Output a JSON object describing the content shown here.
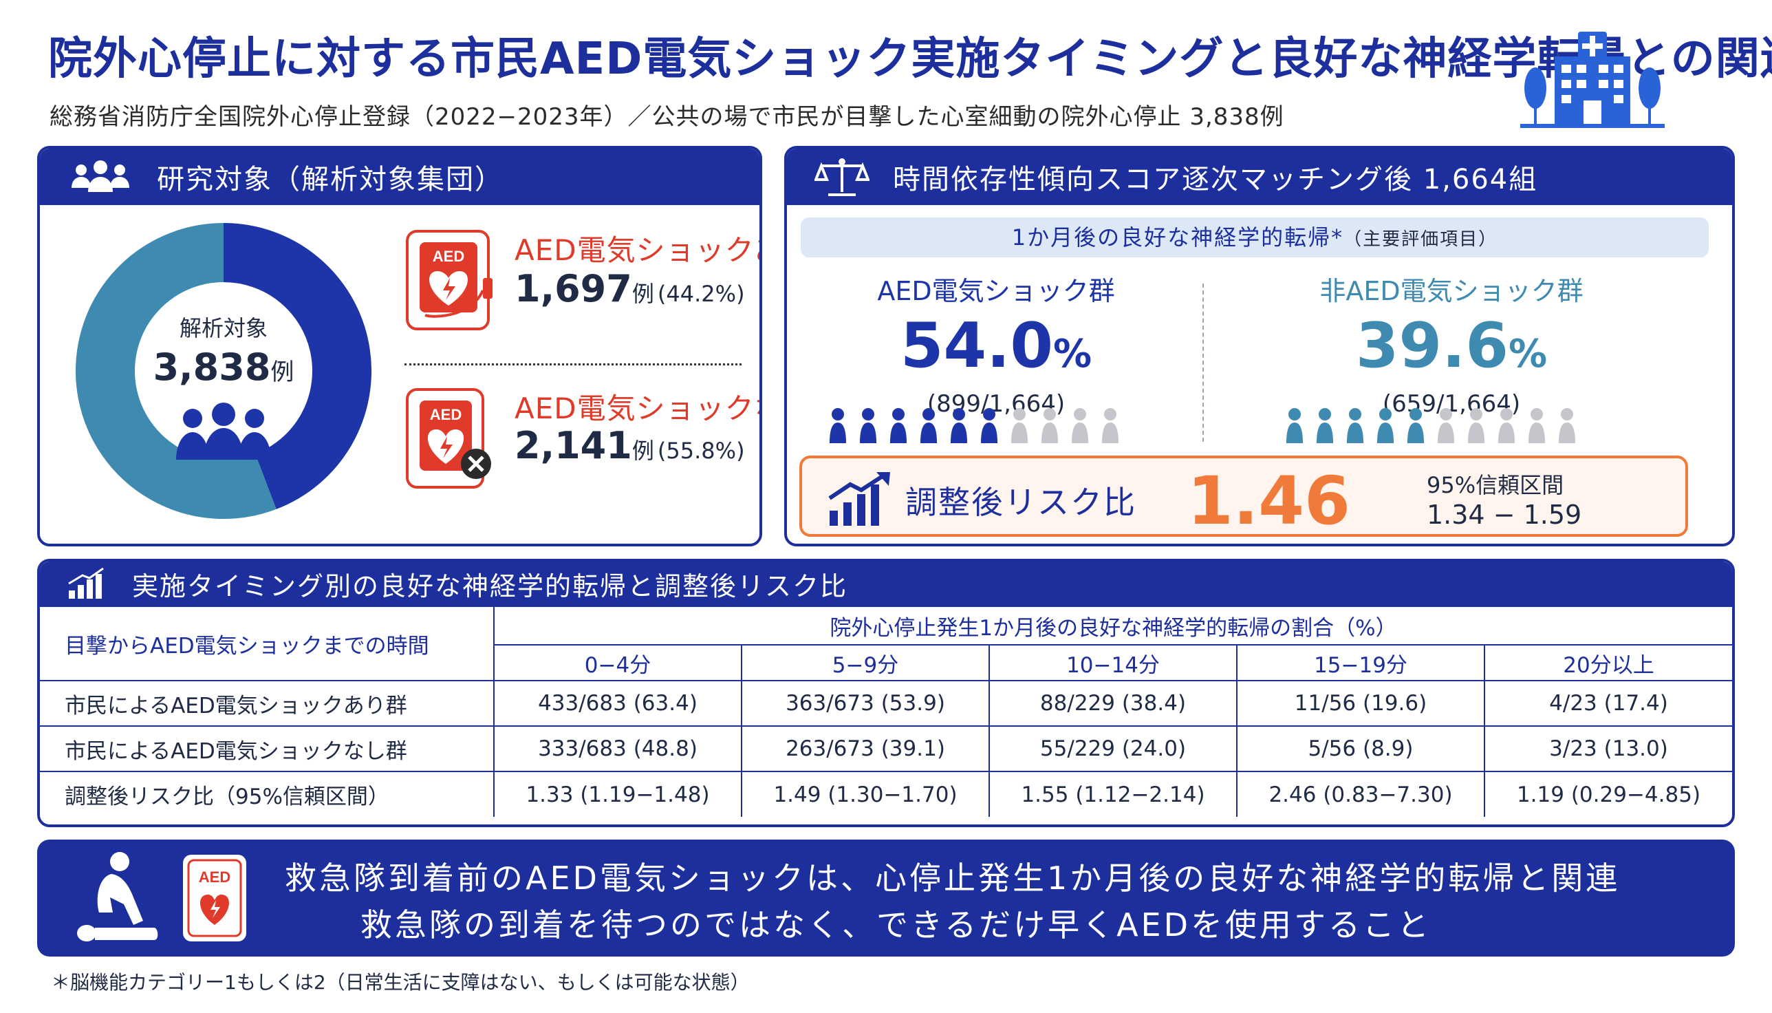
{
  "header": {
    "title": "院外心停止に対する市民AED電気ショック実施タイミングと良好な神経学転帰との関連",
    "subtitle": "総務省消防庁全国院外心停止登録（2022−2023年）／公共の場で市民が目撃した心室細動の院外心停止 3,838例"
  },
  "study": {
    "heading": "研究対象（解析対象集団）",
    "center_label": "解析対象",
    "total": "3,838",
    "total_unit": "例",
    "aed_icon_text": "AED",
    "groups": [
      {
        "label": "AED電気ショックあり",
        "count": "1,697",
        "unit": "例",
        "pct": "(44.2%)",
        "share": 44.2
      },
      {
        "label": "AED電気ショックなし",
        "count": "2,141",
        "unit": "例",
        "pct": "(55.8%)",
        "share": 55.8
      }
    ],
    "colors": {
      "shock": "#1d35a8",
      "no_shock": "#3e8ab0"
    }
  },
  "matching": {
    "heading": "時間依存性傾向スコア逐次マッチング後 1,664組",
    "endpoint": "1か月後の良好な神経学的転帰*",
    "endpoint_note": "（主要評価項目）",
    "groups": [
      {
        "name": "AED電気ショック群",
        "value": "54.0",
        "unit": "%",
        "fraction": "(899/1,664)",
        "filled": 6,
        "of": 10,
        "color": "#1d35a8"
      },
      {
        "name": "非AED電気ショック群",
        "value": "39.6",
        "unit": "%",
        "fraction": "(659/1,664)",
        "filled": 5,
        "of": 10,
        "color": "#3e8ab0"
      }
    ],
    "risk": {
      "label": "調整後リスク比",
      "value": "1.46",
      "ci_label": "95%信頼区間",
      "ci": "1.34 − 1.59"
    }
  },
  "timing_table": {
    "heading": "実施タイミング別の良好な神経学的転帰と調整後リスク比",
    "corner": "目撃からAED電気ショックまでの時間",
    "group_header": "院外心停止発生1か月後の良好な神経学的転帰の割合（%）",
    "columns": [
      "0−4分",
      "5−9分",
      "10−14分",
      "15−19分",
      "20分以上"
    ],
    "rows": [
      {
        "label": "市民によるAED電気ショックあり群",
        "cells": [
          "433/683 (63.4)",
          "363/673 (53.9)",
          "88/229 (38.4)",
          "11/56 (19.6)",
          "4/23 (17.4)"
        ]
      },
      {
        "label": "市民によるAED電気ショックなし群",
        "cells": [
          "333/683 (48.8)",
          "263/673 (39.1)",
          "55/229 (24.0)",
          "5/56 (8.9)",
          "3/23 (13.0)"
        ]
      },
      {
        "label": "調整後リスク比（95%信頼区間）",
        "cells": [
          "1.33 (1.19−1.48)",
          "1.49 (1.30−1.70)",
          "1.55 (1.12−2.14)",
          "2.46 (0.83−7.30)",
          "1.19 (0.29−4.85)"
        ]
      }
    ]
  },
  "conclusion": {
    "line1": "救急隊到着前のAED電気ショックは、心停止発生1か月後の良好な神経学的転帰と関連",
    "line2": "救急隊の到着を待つのではなく、できるだけ早くAEDを使用すること",
    "aed_icon_text": "AED"
  },
  "footnote": "＊脳機能カテゴリー1もしくは2（日常生活に支障はない、もしくは可能な状態）"
}
